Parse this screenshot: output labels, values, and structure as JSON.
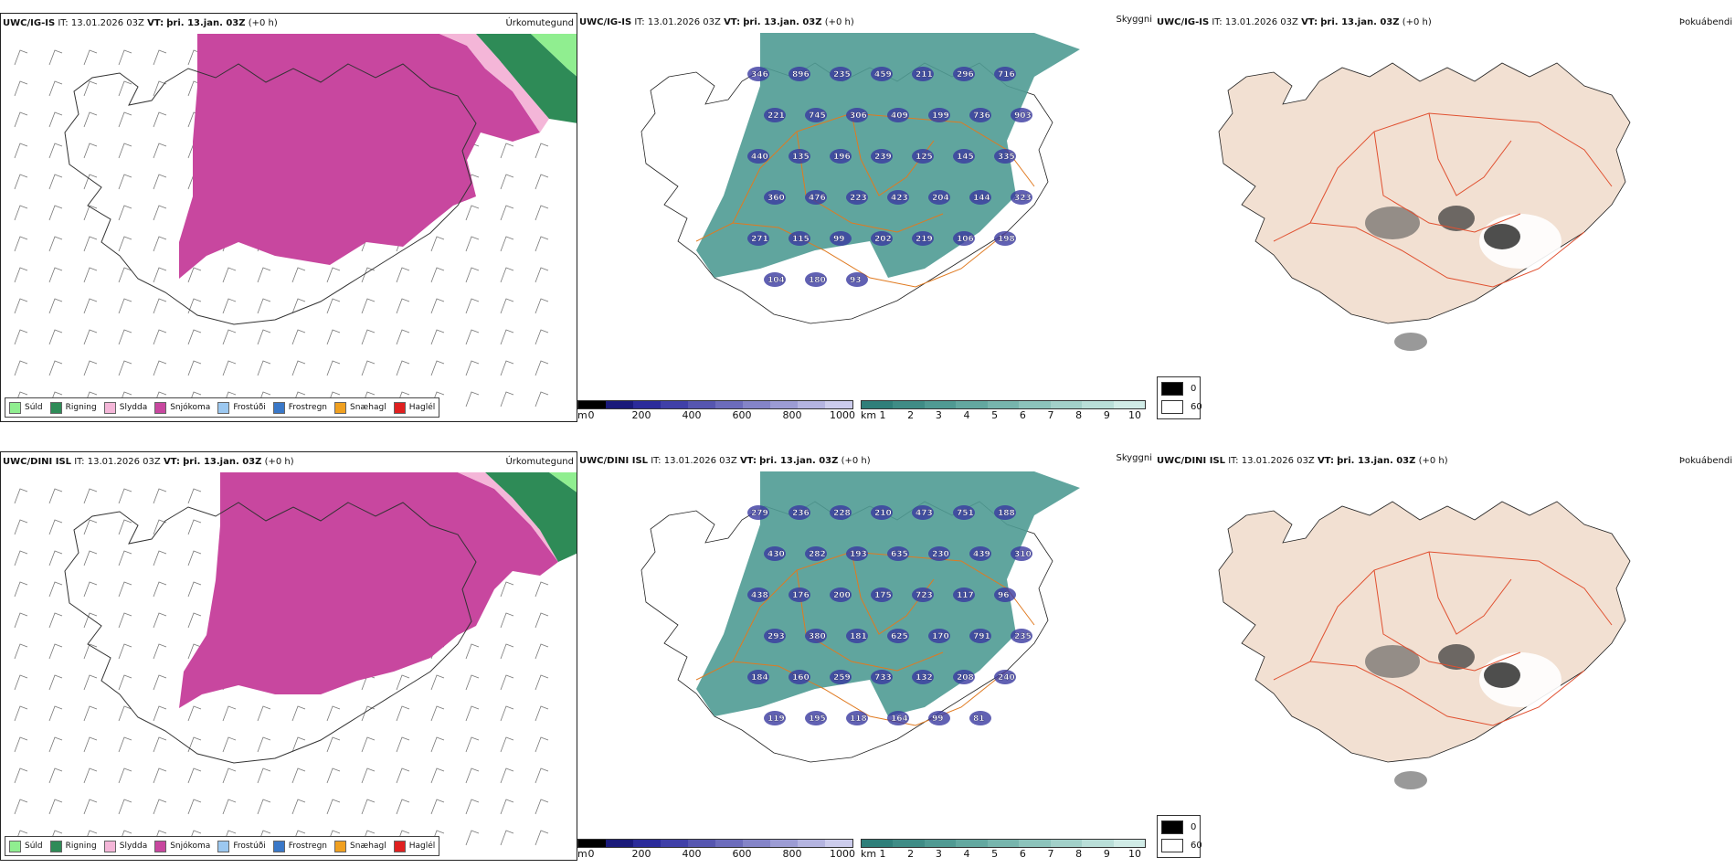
{
  "rows": [
    {
      "model": "UWC/IG-IS",
      "it_label": "IT:",
      "it_value": "13.01.2026 03Z",
      "vt_label": "VT:",
      "vt_value": "þri. 13.jan. 03Z",
      "lead": "(+0 h)",
      "panels": [
        "Úrkomutegund",
        "Skyggni",
        "Þokuábendi"
      ],
      "visibility_labels": [
        "346",
        "896",
        "235",
        "459",
        "211",
        "296",
        "716",
        "221",
        "745",
        "306",
        "409",
        "199",
        "736",
        "903",
        "440",
        "135",
        "196",
        "239",
        "125",
        "145",
        "335",
        "360",
        "476",
        "223",
        "423",
        "204",
        "144",
        "323",
        "271",
        "115",
        "99",
        "202",
        "219",
        "106",
        "198",
        "104",
        "180",
        "93"
      ]
    },
    {
      "model": "UWC/DINI ISL",
      "it_label": "IT:",
      "it_value": "13.01.2026 03Z",
      "vt_label": "VT:",
      "vt_value": "þri. 13.jan. 03Z",
      "lead": "(+0 h)",
      "panels": [
        "Úrkomutegund",
        "Skyggni",
        "Þokuábendi"
      ],
      "visibility_labels": [
        "279",
        "236",
        "228",
        "210",
        "473",
        "751",
        "188",
        "430",
        "282",
        "193",
        "635",
        "230",
        "439",
        "310",
        "438",
        "176",
        "200",
        "175",
        "723",
        "117",
        "96",
        "293",
        "380",
        "181",
        "625",
        "170",
        "791",
        "235",
        "184",
        "160",
        "259",
        "733",
        "132",
        "208",
        "240",
        "119",
        "195",
        "118",
        "164",
        "99",
        "81"
      ]
    }
  ],
  "precip_legend": [
    {
      "label": "Súld",
      "color": "#90ee90"
    },
    {
      "label": "Rigning",
      "color": "#2e8b57"
    },
    {
      "label": "Slydda",
      "color": "#f4b6d8"
    },
    {
      "label": "Snjókoma",
      "color": "#c8479f"
    },
    {
      "label": "Frostúði",
      "color": "#9cc8f0"
    },
    {
      "label": "Frostregn",
      "color": "#3a78c8"
    },
    {
      "label": "Snæhagl",
      "color": "#f0a020"
    },
    {
      "label": "Haglél",
      "color": "#e02020"
    }
  ],
  "height_bar": {
    "unit": "m",
    "ticks": [
      "0",
      "200",
      "400",
      "600",
      "800",
      "1000"
    ],
    "colors": [
      "#000000",
      "#1a1a7a",
      "#2b2b9a",
      "#4040a8",
      "#5656b0",
      "#6c6cbc",
      "#8484c8",
      "#9c9cd4",
      "#b4b4e0",
      "#ccccec"
    ]
  },
  "vis_bar": {
    "unit": "km",
    "ticks": [
      "1",
      "2",
      "3",
      "4",
      "5",
      "6",
      "7",
      "8",
      "9",
      "10"
    ],
    "colors": [
      "#2f7f7a",
      "#3f8c86",
      "#509a93",
      "#63a8a0",
      "#77b5ad",
      "#8cc3bb",
      "#a2d0c9",
      "#b9ded8",
      "#d0ebe6"
    ]
  },
  "fog_legend": {
    "labels": [
      "0",
      "60"
    ],
    "colors": [
      "#000000",
      "#ffffff"
    ]
  }
}
